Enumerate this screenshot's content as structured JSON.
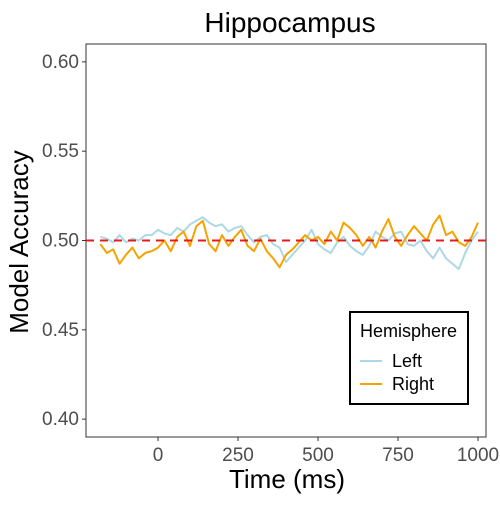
{
  "chart_data": {
    "type": "line",
    "title": "Hippocampus",
    "xlabel": "Time (ms)",
    "ylabel": "Model Accuracy",
    "xlim": [
      -225,
      1025
    ],
    "ylim": [
      0.39,
      0.61
    ],
    "x_ticks": [
      0,
      250,
      500,
      750,
      1000
    ],
    "x_tick_labels": [
      "0",
      "250",
      "500",
      "750",
      "1000"
    ],
    "y_ticks": [
      0.4,
      0.45,
      0.5,
      0.55,
      0.6
    ],
    "y_tick_labels": [
      "0.40",
      "0.45",
      "0.50",
      "0.55",
      "0.60"
    ],
    "grid": false,
    "reference_line": {
      "y": 0.5,
      "style": "dashed",
      "color": "#e41a1c"
    },
    "legend": {
      "title": "Hemisphere",
      "position": "bottom-right",
      "entries": [
        "Left",
        "Right"
      ]
    },
    "series": [
      {
        "name": "Left",
        "color": "#add8e6",
        "x": [
          -180,
          -160,
          -140,
          -120,
          -100,
          -80,
          -60,
          -40,
          -20,
          0,
          20,
          40,
          60,
          80,
          100,
          120,
          140,
          160,
          180,
          200,
          220,
          240,
          260,
          280,
          300,
          320,
          340,
          360,
          380,
          400,
          420,
          440,
          460,
          480,
          500,
          520,
          540,
          560,
          580,
          600,
          620,
          640,
          660,
          680,
          700,
          720,
          740,
          760,
          780,
          800,
          820,
          840,
          860,
          880,
          900,
          920,
          940,
          960,
          980,
          1000
        ],
        "values": [
          0.502,
          0.501,
          0.499,
          0.503,
          0.499,
          0.501,
          0.5,
          0.503,
          0.503,
          0.506,
          0.504,
          0.503,
          0.507,
          0.505,
          0.509,
          0.511,
          0.513,
          0.51,
          0.508,
          0.509,
          0.505,
          0.507,
          0.508,
          0.503,
          0.499,
          0.502,
          0.503,
          0.498,
          0.496,
          0.488,
          0.492,
          0.496,
          0.5,
          0.506,
          0.498,
          0.495,
          0.493,
          0.499,
          0.502,
          0.497,
          0.494,
          0.492,
          0.497,
          0.505,
          0.502,
          0.5,
          0.504,
          0.505,
          0.498,
          0.497,
          0.5,
          0.494,
          0.49,
          0.496,
          0.49,
          0.487,
          0.484,
          0.493,
          0.5,
          0.505
        ]
      },
      {
        "name": "Right",
        "color": "#f5a300",
        "x": [
          -180,
          -160,
          -140,
          -120,
          -100,
          -80,
          -60,
          -40,
          -20,
          0,
          20,
          40,
          60,
          80,
          100,
          120,
          140,
          160,
          180,
          200,
          220,
          240,
          260,
          280,
          300,
          320,
          340,
          360,
          380,
          400,
          420,
          440,
          460,
          480,
          500,
          520,
          540,
          560,
          580,
          600,
          620,
          640,
          660,
          680,
          700,
          720,
          740,
          760,
          780,
          800,
          820,
          840,
          860,
          880,
          900,
          920,
          940,
          960,
          980,
          1000
        ],
        "values": [
          0.498,
          0.493,
          0.495,
          0.487,
          0.492,
          0.496,
          0.49,
          0.493,
          0.494,
          0.496,
          0.5,
          0.494,
          0.502,
          0.505,
          0.497,
          0.508,
          0.511,
          0.498,
          0.494,
          0.503,
          0.497,
          0.502,
          0.506,
          0.497,
          0.494,
          0.501,
          0.494,
          0.49,
          0.485,
          0.492,
          0.495,
          0.499,
          0.503,
          0.5,
          0.502,
          0.498,
          0.505,
          0.5,
          0.51,
          0.507,
          0.503,
          0.497,
          0.502,
          0.496,
          0.505,
          0.512,
          0.502,
          0.497,
          0.503,
          0.508,
          0.504,
          0.5,
          0.509,
          0.514,
          0.503,
          0.505,
          0.499,
          0.497,
          0.502,
          0.51
        ]
      }
    ]
  }
}
